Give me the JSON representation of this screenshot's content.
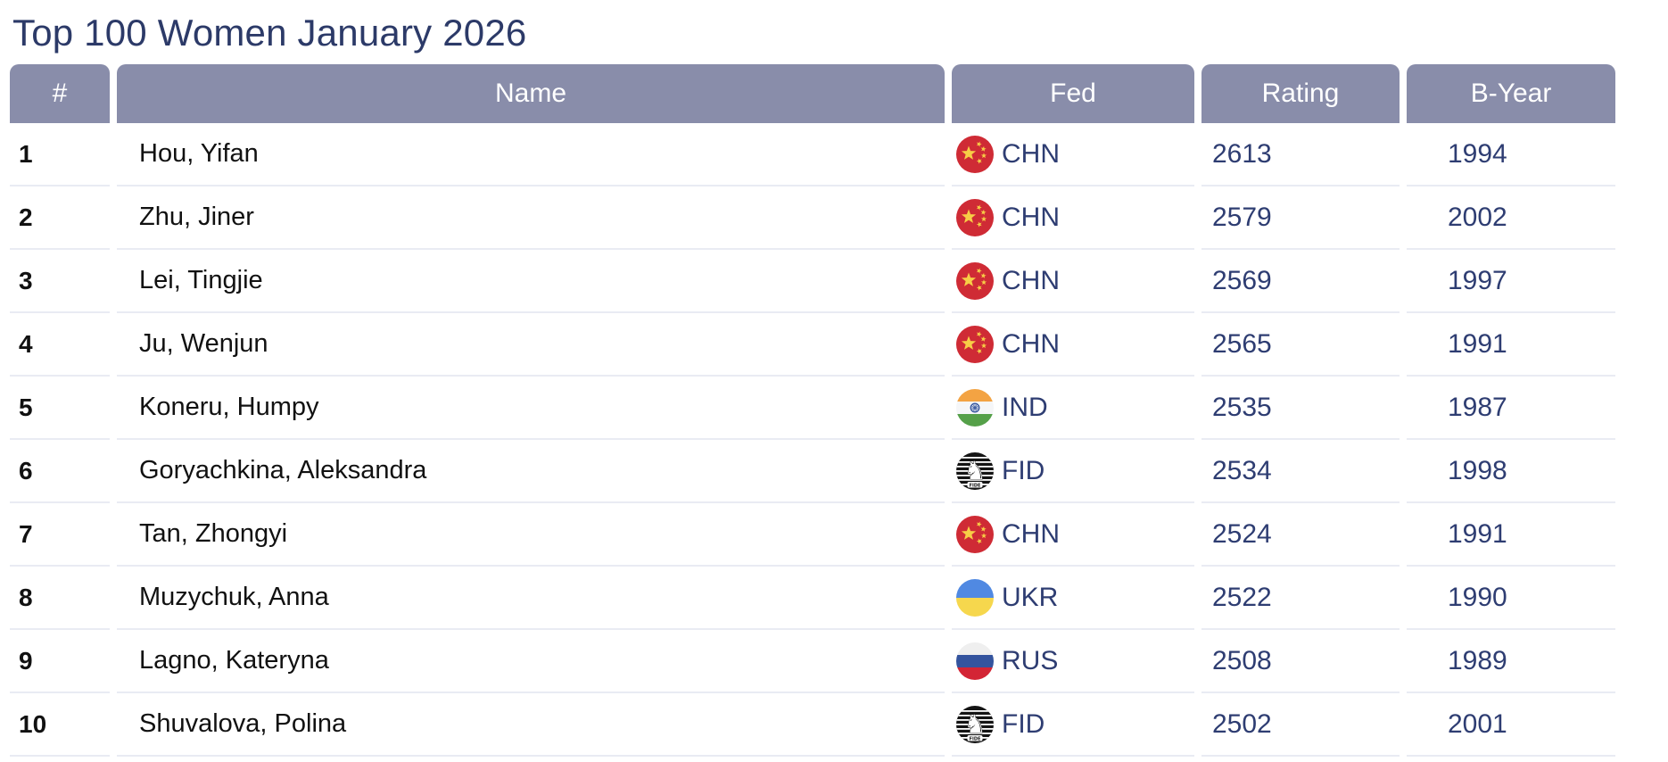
{
  "page_title": "Top 100 Women January 2026",
  "table": {
    "headers": [
      {
        "key": "rank",
        "label": "#"
      },
      {
        "key": "name",
        "label": "Name"
      },
      {
        "key": "fed",
        "label": "Fed"
      },
      {
        "key": "rating",
        "label": "Rating"
      },
      {
        "key": "byear",
        "label": "B-Year"
      }
    ],
    "rows": [
      {
        "rank": "1",
        "name": "Hou, Yifan",
        "fed": "CHN",
        "rating": "2613",
        "byear": "1994"
      },
      {
        "rank": "2",
        "name": "Zhu, Jiner",
        "fed": "CHN",
        "rating": "2579",
        "byear": "2002"
      },
      {
        "rank": "3",
        "name": "Lei, Tingjie",
        "fed": "CHN",
        "rating": "2569",
        "byear": "1997"
      },
      {
        "rank": "4",
        "name": "Ju, Wenjun",
        "fed": "CHN",
        "rating": "2565",
        "byear": "1991"
      },
      {
        "rank": "5",
        "name": "Koneru, Humpy",
        "fed": "IND",
        "rating": "2535",
        "byear": "1987"
      },
      {
        "rank": "6",
        "name": "Goryachkina, Aleksandra",
        "fed": "FID",
        "rating": "2534",
        "byear": "1998"
      },
      {
        "rank": "7",
        "name": "Tan, Zhongyi",
        "fed": "CHN",
        "rating": "2524",
        "byear": "1991"
      },
      {
        "rank": "8",
        "name": "Muzychuk, Anna",
        "fed": "UKR",
        "rating": "2522",
        "byear": "1990"
      },
      {
        "rank": "9",
        "name": "Lagno, Kateryna",
        "fed": "RUS",
        "rating": "2508",
        "byear": "1989"
      },
      {
        "rank": "10",
        "name": "Shuvalova, Polina",
        "fed": "FID",
        "rating": "2502",
        "byear": "2001"
      }
    ]
  },
  "colors": {
    "title_text": "#2c3a68",
    "header_bg": "#898daa",
    "header_text": "#ffffff",
    "value_text": "#2e3d72",
    "body_text": "#111111",
    "row_divider": "#e9ebf3"
  },
  "flags": {
    "CHN": {
      "icon_name": "china-flag-icon",
      "colors": {
        "red": "#cf2b35",
        "gold": "#f7ce46"
      }
    },
    "IND": {
      "icon_name": "india-flag-icon",
      "colors": {
        "saffron": "#f3a343",
        "white": "#f5f6f8",
        "green": "#55a049",
        "navy": "#3b5aa0"
      }
    },
    "FID": {
      "icon_name": "fide-flag-icon",
      "colors": {
        "black": "#141414",
        "white": "#ffffff"
      },
      "label": "FIDE"
    },
    "UKR": {
      "icon_name": "ukraine-flag-icon",
      "colors": {
        "blue": "#5089e2",
        "yellow": "#f6d74d"
      }
    },
    "RUS": {
      "icon_name": "russia-flag-icon",
      "colors": {
        "white": "#efefef",
        "blue": "#34549e",
        "red": "#d32535"
      }
    }
  }
}
